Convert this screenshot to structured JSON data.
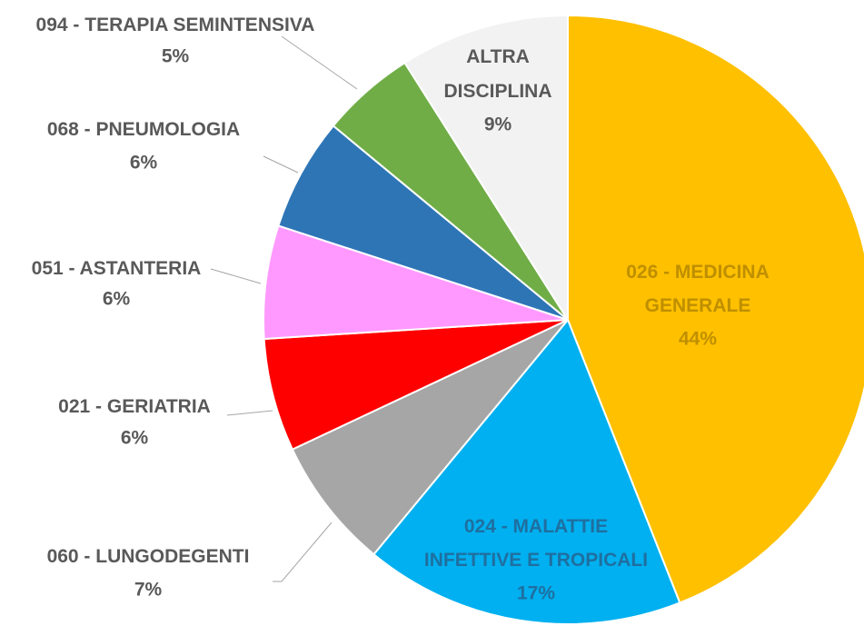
{
  "chart_data": {
    "type": "pie",
    "categories": [
      "026 - MEDICINA GENERALE",
      "024 - MALATTIE INFETTIVE E TROPICALI",
      "060 - LUNGODEGENTI",
      "021 - GERIATRIA",
      "051 - ASTANTERIA",
      "068 - PNEUMOLOGIA",
      "094 - TERAPIA SEMINTENSIVA",
      "ALTRA DISCIPLINA"
    ],
    "values": [
      44,
      17,
      7,
      6,
      6,
      6,
      5,
      9
    ],
    "value_labels": [
      "44%",
      "17%",
      "7%",
      "6%",
      "6%",
      "6%",
      "5%",
      "9%"
    ],
    "colors": [
      "#ffc000",
      "#00b0f0",
      "#a6a6a6",
      "#ff0000",
      "#ff99ff",
      "#2e75b6",
      "#70ad47",
      "#f2f2f2"
    ]
  }
}
